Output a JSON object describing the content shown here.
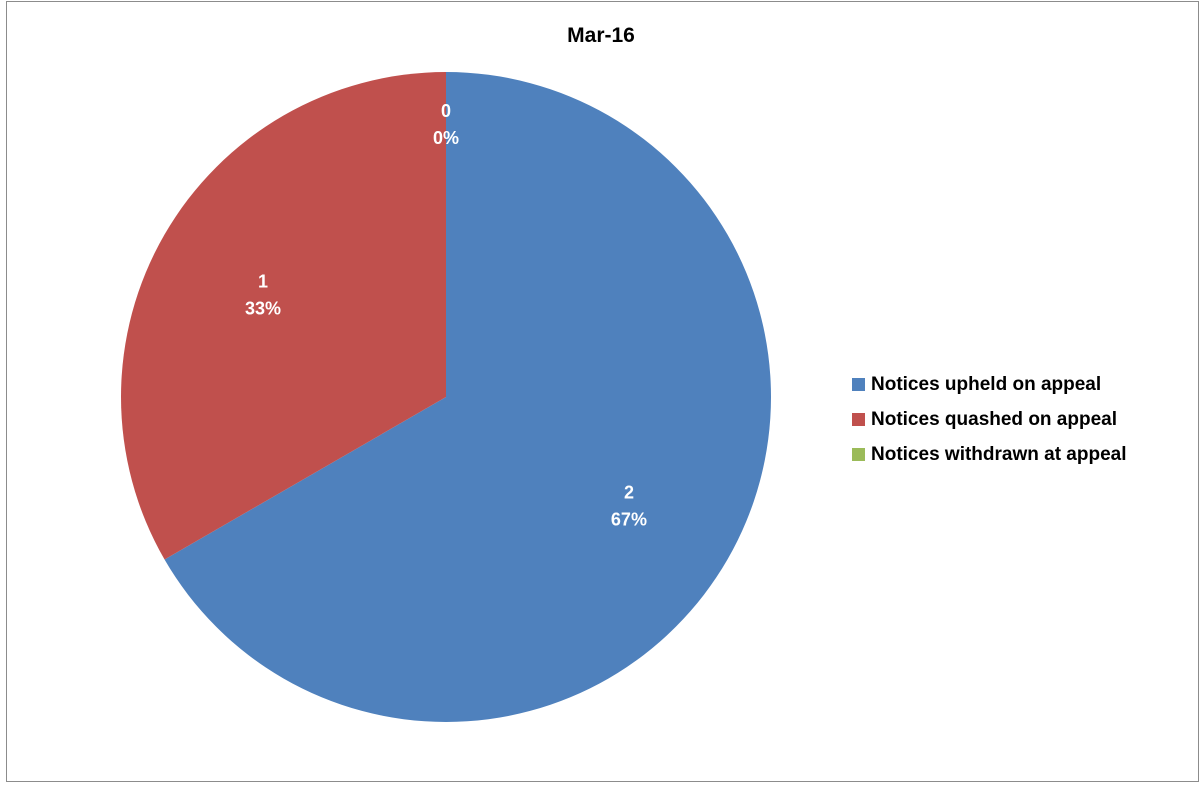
{
  "chart_data": {
    "type": "pie",
    "title": "Mar-16",
    "legend_position": "right",
    "slices": [
      {
        "name": "Notices upheld on appeal",
        "value": 2,
        "percent_label": "67%",
        "color": "#4f81bd"
      },
      {
        "name": "Notices quashed on appeal",
        "value": 1,
        "percent_label": "33%",
        "color": "#c0504d"
      },
      {
        "name": "Notices withdrawn at appeal",
        "value": 0,
        "percent_label": "0%",
        "color": "#9bbb59"
      }
    ]
  }
}
